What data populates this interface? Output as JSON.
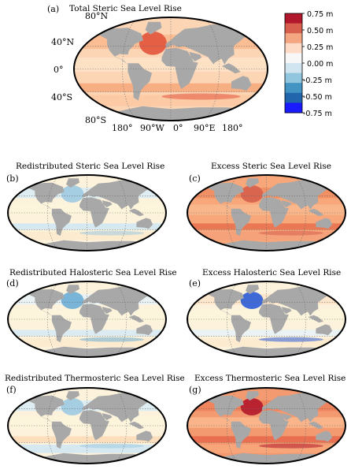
{
  "figure": {
    "panels": [
      {
        "id": "a",
        "label": "(a)",
        "title": "Total Steric Sea Level Rise",
        "field": "total"
      },
      {
        "id": "b",
        "label": "(b)",
        "title": "Redistributed Steric Sea Level Rise",
        "field": "redistributed"
      },
      {
        "id": "c",
        "label": "(c)",
        "title": "Excess Steric Sea Level Rise",
        "field": "excess"
      },
      {
        "id": "d",
        "label": "(d)",
        "title": "Redistributed Halosteric Sea Level Rise",
        "field": "redist_halo"
      },
      {
        "id": "e",
        "label": "(e)",
        "title": "Excess Halosteric Sea Level Rise",
        "field": "excess_halo"
      },
      {
        "id": "f",
        "label": "(f)",
        "title": "Redistributed Thermosteric Sea Level Rise",
        "field": "redist_thermo"
      },
      {
        "id": "g",
        "label": "(g)",
        "title": "Excess Thermosteric Sea Level Rise",
        "field": "excess_thermo"
      }
    ],
    "lat_labels": [
      "80°N",
      "40°N",
      "0°",
      "40°S",
      "80°S"
    ],
    "lon_labels": [
      "180°",
      "90°W",
      "0°",
      "90°E",
      "180°"
    ],
    "colorbar": {
      "ticks": [
        "0.75 m",
        "0.50 m",
        "0.25 m",
        "0.00 m",
        "-0.25 m",
        "-0.50 m",
        "-0.75 m"
      ],
      "range": [
        -0.75,
        0.75
      ],
      "colors_top_to_bottom": [
        "#b2182b",
        "#d6604d",
        "#f4a582",
        "#fddbc7",
        "#f7f7f7",
        "#d1e5f0",
        "#92c5de",
        "#4393c3",
        "#2166ac",
        "#1a1aff"
      ]
    },
    "colors": {
      "land": "#a8a8a8",
      "ocean_neutral": "#fdf3dc",
      "frame": "#000000",
      "grid": "#666666"
    }
  }
}
